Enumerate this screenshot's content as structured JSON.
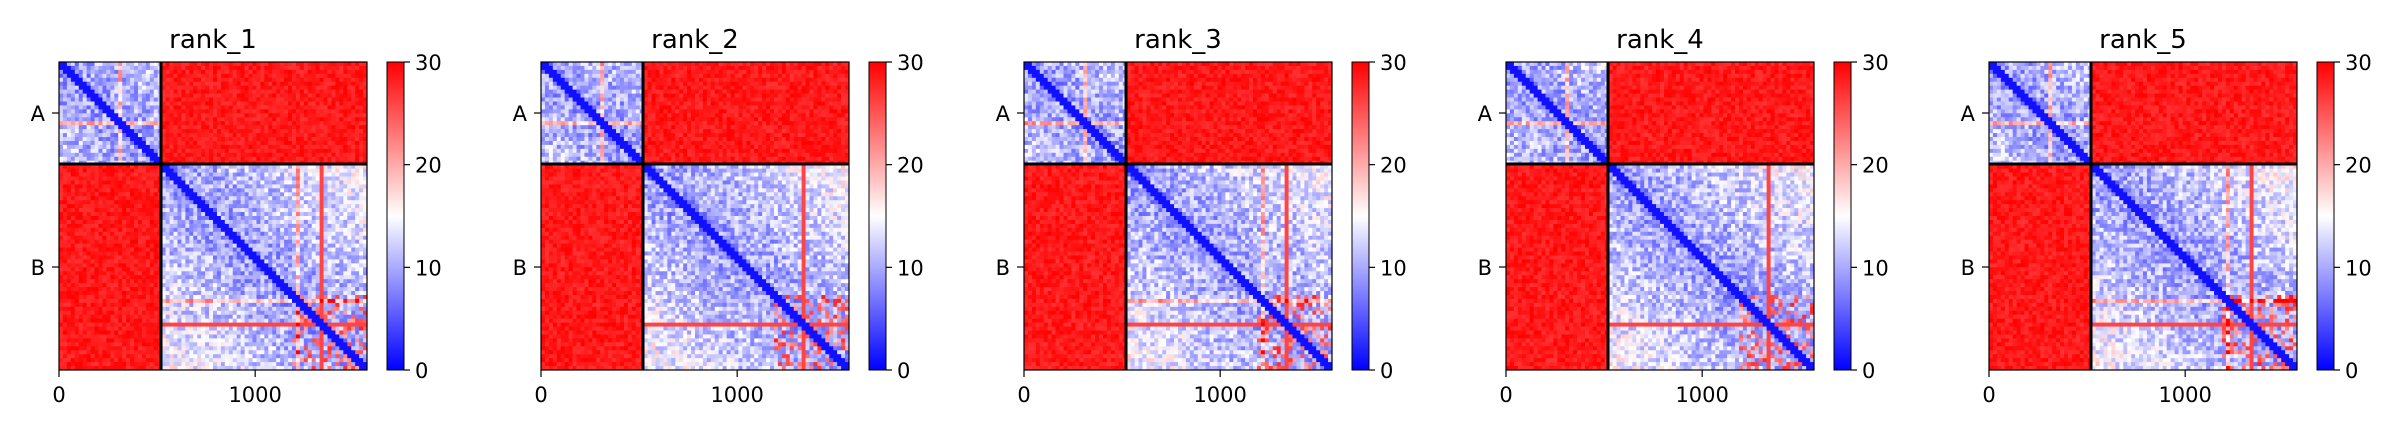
{
  "chart_data": [
    {
      "type": "heatmap",
      "title": "rank_1",
      "variant": 1
    },
    {
      "type": "heatmap",
      "title": "rank_2",
      "variant": 2
    },
    {
      "type": "heatmap",
      "title": "rank_3",
      "variant": 3
    },
    {
      "type": "heatmap",
      "title": "rank_4",
      "variant": 4
    },
    {
      "type": "heatmap",
      "title": "rank_5",
      "variant": 5
    }
  ],
  "shared": {
    "xlim": [
      0,
      1570
    ],
    "x_ticks": [
      0,
      1000
    ],
    "x_tick_labels": [
      "0",
      "1000"
    ],
    "chain_boundary": 520,
    "y_tick_labels": [
      "A",
      "B"
    ],
    "colorbar": {
      "range": [
        0,
        30
      ],
      "ticks": [
        0,
        10,
        20,
        30
      ],
      "tick_labels": [
        "0",
        "10",
        "20",
        "30"
      ],
      "colors": {
        "low": "#0000ff",
        "mid": "#ffffff",
        "high": "#ff0000"
      }
    },
    "divider_color": "#000000"
  }
}
